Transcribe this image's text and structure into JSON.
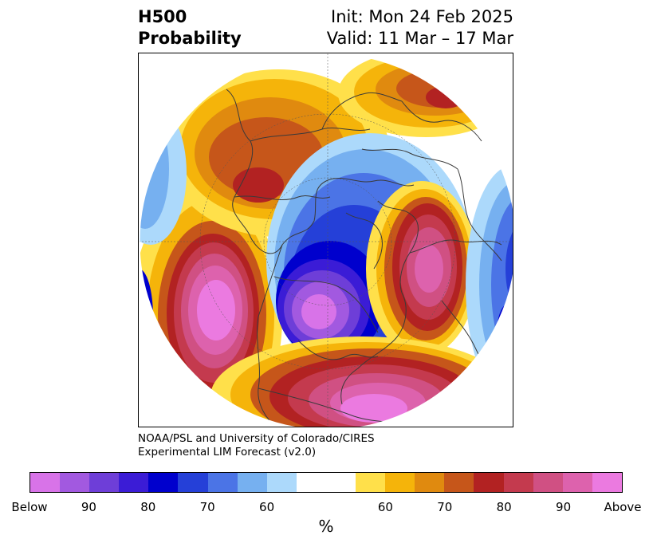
{
  "header": {
    "title_line1": "H500",
    "title_line2": "Probability",
    "init_label": "Init: Mon 24 Feb 2025",
    "valid_label": "Valid: 11 Mar – 17 Mar"
  },
  "credit": {
    "line1": "NOAA/PSL and University of Colorado/CIRES",
    "line2": "Experimental LIM Forecast (v2.0)"
  },
  "colorbar": {
    "colors": [
      "#d873e8",
      "#a259e0",
      "#6e3ed8",
      "#3b1cd6",
      "#0000cd",
      "#2540d8",
      "#4b74e6",
      "#76b0f0",
      "#acd9fb",
      "#ffffff",
      "#ffffff",
      "#ffe04a",
      "#f5b40a",
      "#e08a0f",
      "#c6561a",
      "#b22222",
      "#c43a4e",
      "#d05083",
      "#dd62ad",
      "#eb7ae0"
    ],
    "tick_labels": [
      "Below",
      "90",
      "80",
      "70",
      "60",
      "60",
      "70",
      "80",
      "90",
      "Above"
    ],
    "unit": "%"
  },
  "map": {
    "projection": "north-polar-stereographic",
    "variable": "H500 probability"
  }
}
